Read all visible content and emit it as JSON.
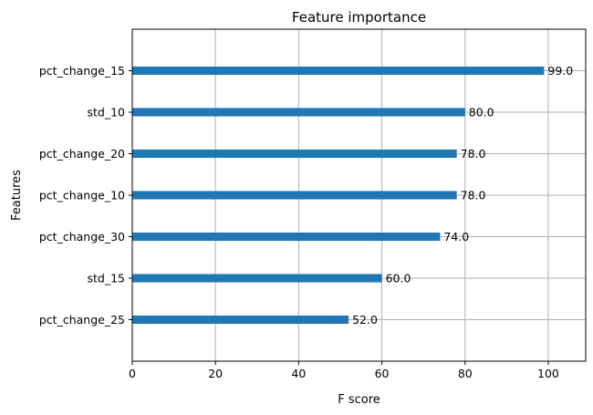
{
  "chart_data": {
    "type": "bar",
    "orientation": "horizontal",
    "title": "Feature importance",
    "xlabel": "F score",
    "ylabel": "Features",
    "categories": [
      "pct_change_25",
      "std_15",
      "pct_change_30",
      "pct_change_10",
      "pct_change_20",
      "std_10",
      "pct_change_15"
    ],
    "values": [
      52.0,
      60.0,
      74.0,
      78.0,
      78.0,
      80.0,
      99.0
    ],
    "value_labels": [
      "52.0",
      "60.0",
      "74.0",
      "78.0",
      "78.0",
      "80.0",
      "99.0"
    ],
    "xlim": [
      0,
      109
    ],
    "xticks": [
      0,
      20,
      40,
      60,
      80,
      100
    ],
    "grid": true,
    "bar_color": "#1f77b4",
    "grid_color": "#b0b0b0"
  }
}
